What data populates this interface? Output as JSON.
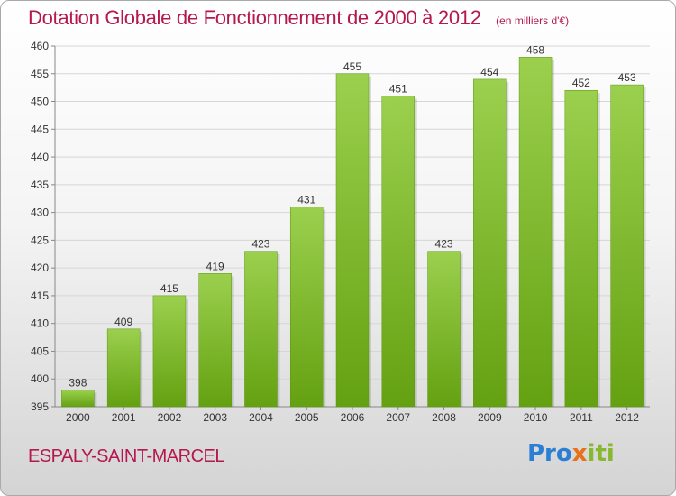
{
  "header": {
    "title": "Dotation Globale de Fonctionnement de 2000 à 2012",
    "subtitle": "(en milliers d'€)"
  },
  "footer": {
    "commune": "ESPALY-SAINT-MARCEL",
    "logo_parts": [
      "Pro",
      "x",
      "iti"
    ]
  },
  "colors": {
    "bar_top": "#9bd04e",
    "bar_bottom": "#64a111",
    "title": "#b5174f"
  },
  "chart_data": {
    "type": "bar",
    "title": "Dotation Globale de Fonctionnement de 2000 à 2012",
    "subtitle": "(en milliers d'€)",
    "categories": [
      "2000",
      "2001",
      "2002",
      "2003",
      "2004",
      "2005",
      "2006",
      "2007",
      "2008",
      "2009",
      "2010",
      "2011",
      "2012"
    ],
    "values": [
      398,
      409,
      415,
      419,
      423,
      431,
      455,
      451,
      423,
      454,
      458,
      452,
      453
    ],
    "xlabel": "",
    "ylabel": "",
    "ylim": [
      395,
      460
    ],
    "yticks": [
      395,
      400,
      405,
      410,
      415,
      420,
      425,
      430,
      435,
      440,
      445,
      450,
      455,
      460
    ],
    "grid": true,
    "legend": "none"
  }
}
